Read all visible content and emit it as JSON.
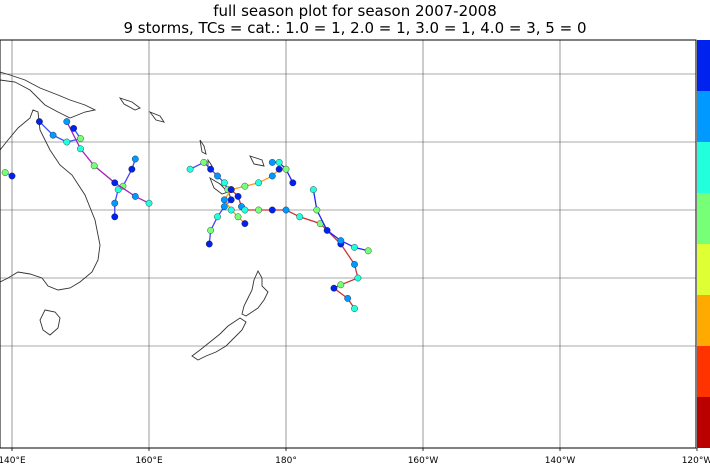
{
  "title_line1": "full season plot for season 2007-2008",
  "title_line2": "9 storms, TCs = cat.: 1.0 = 1, 2.0 = 1, 3.0 = 1, 4.0 = 3, 5 = 0",
  "map": {
    "lon_ticks": [
      "140°E",
      "160°E",
      "180°",
      "160°W",
      "140°W",
      "120°W"
    ],
    "lon_values": [
      140,
      160,
      180,
      200,
      220,
      240
    ],
    "lat_grid": [
      -10,
      -20,
      -30,
      -40,
      -50
    ],
    "background": "#ffffff",
    "coast_color": "#333333",
    "grid_color": "#555555"
  },
  "colorbar": {
    "colors": [
      "#0022ee",
      "#0099ff",
      "#22ffdd",
      "#77ff77",
      "#ddff33",
      "#ffaa00",
      "#ff3300",
      "#bb0000"
    ]
  },
  "storms": [
    {
      "name": "track-a",
      "line_color": "#4444ff",
      "points": [
        [
          155,
          -31
        ],
        [
          155,
          -29
        ],
        [
          155.5,
          -27
        ],
        [
          156.2,
          -26.5
        ],
        [
          157.5,
          -24
        ],
        [
          158,
          -22.5
        ]
      ]
    },
    {
      "name": "track-b",
      "line_color": "#a2b",
      "points": [
        [
          148,
          -17
        ],
        [
          150,
          -21
        ],
        [
          152,
          -23.5
        ],
        [
          155,
          -26
        ],
        [
          158,
          -28
        ],
        [
          160,
          -29
        ]
      ]
    },
    {
      "name": "track-c",
      "line_color": "#4444ff",
      "points": [
        [
          166,
          -24
        ],
        [
          168,
          -23
        ],
        [
          169,
          -24
        ],
        [
          170,
          -25
        ],
        [
          171,
          -26
        ],
        [
          171.5,
          -27
        ],
        [
          172,
          -28.5
        ],
        [
          171,
          -29.5
        ],
        [
          170,
          -31
        ],
        [
          169,
          -33
        ],
        [
          168.8,
          -35
        ]
      ]
    },
    {
      "name": "track-d",
      "line_color": "#cc3333",
      "points": [
        [
          172,
          -27
        ],
        [
          173,
          -28
        ],
        [
          173.5,
          -29.5
        ],
        [
          174,
          -30
        ],
        [
          176,
          -30
        ],
        [
          178,
          -30
        ],
        [
          180,
          -30
        ],
        [
          182,
          -31
        ],
        [
          185,
          -32
        ],
        [
          188,
          -35
        ],
        [
          190,
          -38
        ],
        [
          190.5,
          -40
        ],
        [
          188,
          -41
        ],
        [
          187,
          -41.5
        ],
        [
          189,
          -43
        ],
        [
          190,
          -44.5
        ]
      ]
    },
    {
      "name": "track-e",
      "line_color": "#ff9922",
      "points": [
        [
          179,
          -24
        ],
        [
          178,
          -25
        ],
        [
          176,
          -26
        ],
        [
          174,
          -26.5
        ],
        [
          172,
          -27
        ],
        [
          171,
          -28.5
        ],
        [
          172,
          -30
        ],
        [
          173,
          -31
        ],
        [
          174,
          -32
        ]
      ]
    },
    {
      "name": "track-f",
      "line_color": "#2222ff",
      "points": [
        [
          178,
          -23
        ],
        [
          179,
          -23
        ],
        [
          180,
          -24
        ],
        [
          181,
          -26
        ]
      ]
    },
    {
      "name": "track-g",
      "line_color": "#2222ff",
      "points": [
        [
          184,
          -27
        ],
        [
          184.5,
          -30
        ],
        [
          186,
          -33
        ],
        [
          188,
          -34.5
        ],
        [
          190,
          -35.5
        ],
        [
          192,
          -36
        ]
      ]
    },
    {
      "name": "track-h",
      "line_color": "#5588ff",
      "points": [
        [
          139,
          -24.5
        ],
        [
          140,
          -25
        ]
      ]
    },
    {
      "name": "track-i",
      "line_color": "#3355ff",
      "points": [
        [
          144,
          -17
        ],
        [
          146,
          -19
        ],
        [
          148,
          -20
        ],
        [
          150,
          -19.5
        ],
        [
          149,
          -18
        ]
      ]
    }
  ]
}
